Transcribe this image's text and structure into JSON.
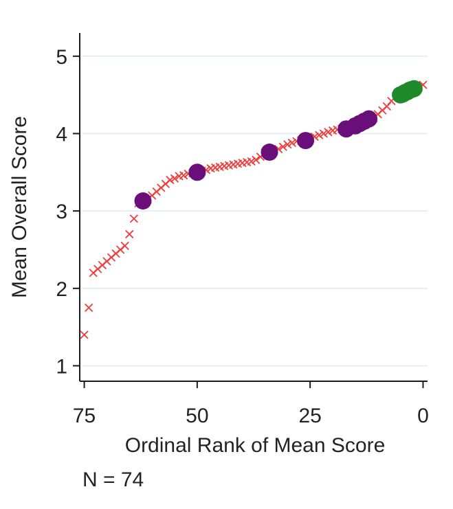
{
  "chart_data": {
    "type": "scatter",
    "xlabel": "Ordinal Rank of Mean Score",
    "ylabel": "Mean Overall Score",
    "xlim": [
      76,
      -1
    ],
    "ylim": [
      0.8,
      5.3
    ],
    "x_reversed": true,
    "x_ticks": [
      75,
      50,
      25,
      0
    ],
    "y_ticks": [
      1,
      2,
      3,
      4,
      5
    ],
    "grid": true,
    "note": "N = 74",
    "series": [
      {
        "marker": "x",
        "color": "#ee3b3b",
        "points": [
          [
            75,
            1.4
          ],
          [
            74,
            1.75
          ],
          [
            73,
            2.2
          ],
          [
            72,
            2.25
          ],
          [
            71,
            2.3
          ],
          [
            70,
            2.35
          ],
          [
            69,
            2.4
          ],
          [
            68,
            2.45
          ],
          [
            67,
            2.5
          ],
          [
            66,
            2.55
          ],
          [
            65,
            2.7
          ],
          [
            64,
            2.9
          ],
          [
            63,
            3.1
          ],
          [
            62,
            3.12
          ],
          [
            61,
            3.15
          ],
          [
            60,
            3.2
          ],
          [
            59,
            3.25
          ],
          [
            58,
            3.3
          ],
          [
            57,
            3.35
          ],
          [
            56,
            3.4
          ],
          [
            55,
            3.42
          ],
          [
            54,
            3.45
          ],
          [
            53,
            3.46
          ],
          [
            52,
            3.48
          ],
          [
            51,
            3.49
          ],
          [
            50,
            3.5
          ],
          [
            49,
            3.52
          ],
          [
            48,
            3.53
          ],
          [
            47,
            3.55
          ],
          [
            46,
            3.56
          ],
          [
            45,
            3.57
          ],
          [
            44,
            3.58
          ],
          [
            43,
            3.59
          ],
          [
            42,
            3.6
          ],
          [
            41,
            3.61
          ],
          [
            40,
            3.62
          ],
          [
            39,
            3.63
          ],
          [
            38,
            3.64
          ],
          [
            37,
            3.66
          ],
          [
            36,
            3.7
          ],
          [
            35,
            3.75
          ],
          [
            34,
            3.76
          ],
          [
            33,
            3.78
          ],
          [
            32,
            3.8
          ],
          [
            31,
            3.83
          ],
          [
            30,
            3.86
          ],
          [
            29,
            3.88
          ],
          [
            28,
            3.9
          ],
          [
            27,
            3.91
          ],
          [
            26,
            3.92
          ],
          [
            25,
            3.94
          ],
          [
            24,
            3.96
          ],
          [
            23,
            3.98
          ],
          [
            22,
            4.0
          ],
          [
            21,
            4.02
          ],
          [
            20,
            4.04
          ],
          [
            19,
            4.05
          ],
          [
            18,
            4.06
          ],
          [
            17,
            4.07
          ],
          [
            16,
            4.08
          ],
          [
            15,
            4.1
          ],
          [
            14,
            4.12
          ],
          [
            13,
            4.15
          ],
          [
            12,
            4.18
          ],
          [
            11,
            4.2
          ],
          [
            10,
            4.25
          ],
          [
            9,
            4.3
          ],
          [
            8,
            4.35
          ],
          [
            7,
            4.42
          ],
          [
            6,
            4.48
          ],
          [
            5,
            4.5
          ],
          [
            4,
            4.53
          ],
          [
            3,
            4.56
          ],
          [
            2,
            4.58
          ],
          [
            1,
            4.6
          ],
          [
            0,
            4.63
          ]
        ]
      },
      {
        "marker": "circle",
        "color": "#6a0f7a",
        "points": [
          [
            62,
            3.13
          ],
          [
            50,
            3.5
          ],
          [
            34,
            3.76
          ],
          [
            26,
            3.91
          ],
          [
            17,
            4.06
          ],
          [
            15,
            4.1
          ],
          [
            14,
            4.13
          ],
          [
            13,
            4.16
          ],
          [
            12,
            4.19
          ]
        ]
      },
      {
        "marker": "circle",
        "color": "#1f8a2a",
        "points": [
          [
            5,
            4.5
          ],
          [
            4.5,
            4.51
          ],
          [
            4,
            4.53
          ],
          [
            3.5,
            4.54
          ],
          [
            3,
            4.56
          ],
          [
            2.5,
            4.57
          ],
          [
            2,
            4.58
          ]
        ]
      }
    ]
  }
}
